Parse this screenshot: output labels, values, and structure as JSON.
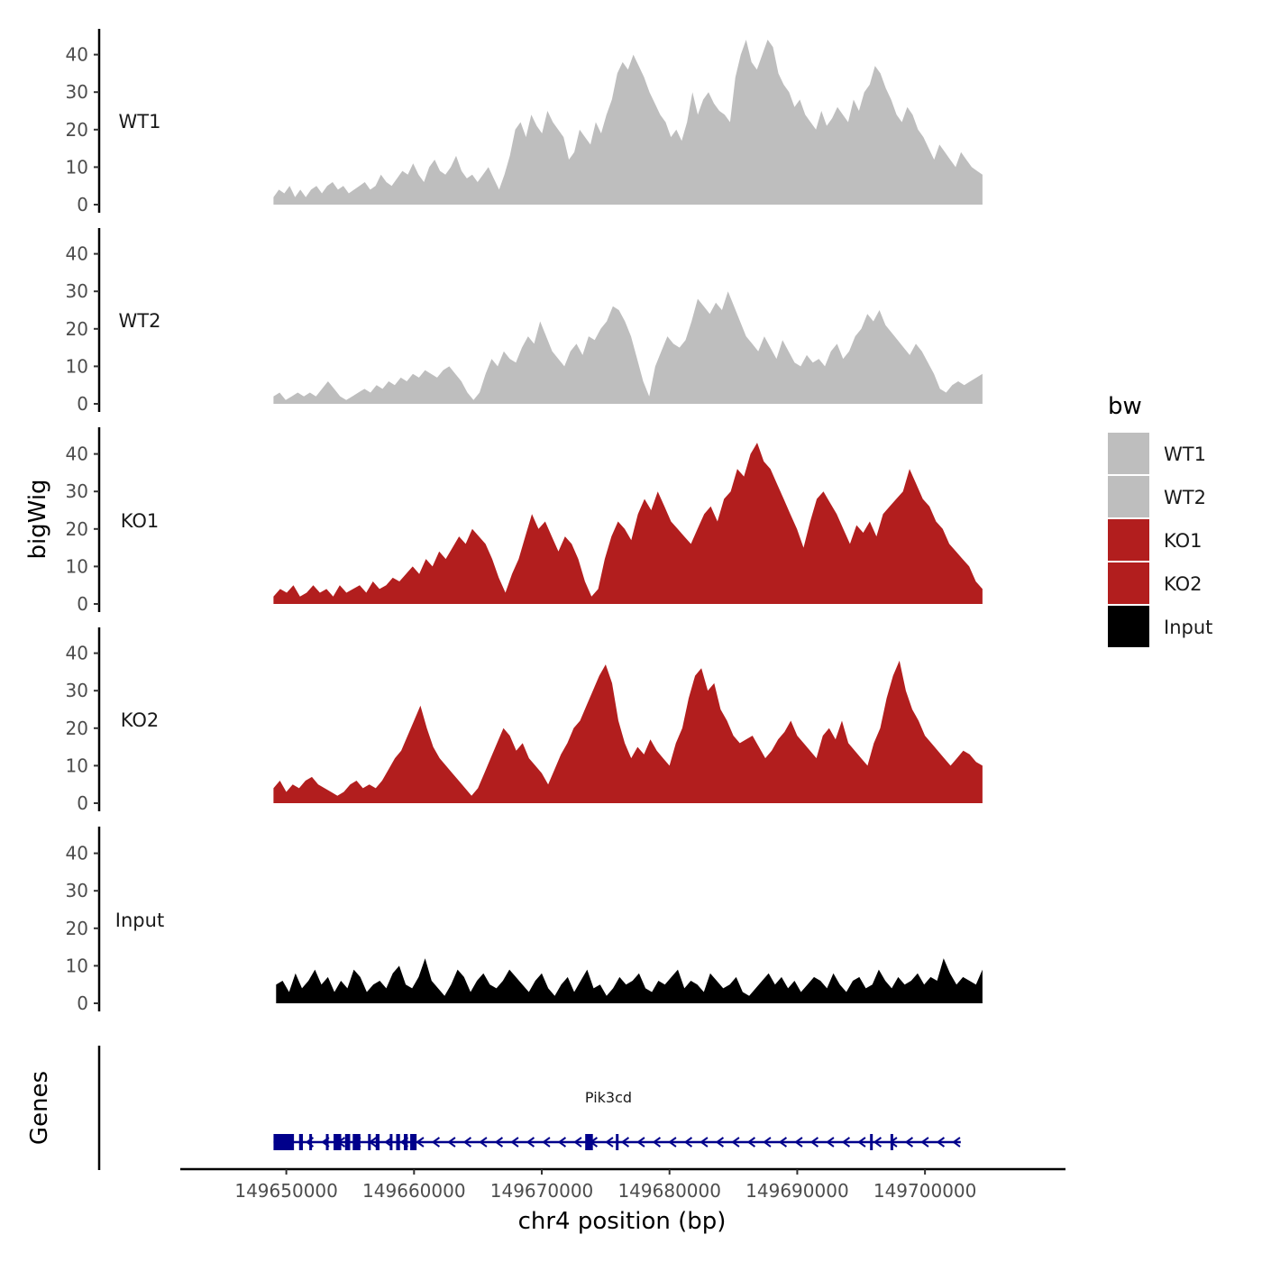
{
  "chart_data": {
    "type": "area",
    "title": "",
    "xlabel": "chr4 position (bp)",
    "ylabel": "bigWig",
    "genes_label": "Genes",
    "xlim": [
      149641700,
      149711000
    ],
    "ylim": [
      0,
      45
    ],
    "x_ticks": [
      149650000,
      149660000,
      149670000,
      149680000,
      149690000,
      149700000
    ],
    "x_tick_labels": [
      "149650000",
      "149660000",
      "149670000",
      "149680000",
      "149690000",
      "149700000"
    ],
    "y_ticks": [
      0,
      10,
      20,
      30,
      40
    ],
    "y_tick_labels": [
      "0",
      "10",
      "20",
      "30",
      "40"
    ],
    "legend": {
      "title": "bw",
      "position": "right",
      "items": [
        {
          "label": "WT1",
          "color": "#bebebe"
        },
        {
          "label": "WT2",
          "color": "#bebebe"
        },
        {
          "label": "KO1",
          "color": "#b21e1e"
        },
        {
          "label": "KO2",
          "color": "#b21e1e"
        },
        {
          "label": "Input",
          "color": "#000000"
        }
      ]
    },
    "series": [
      {
        "name": "WT1",
        "color": "#bebebe",
        "x_start": 149649000,
        "x_end": 149704500,
        "values": [
          2,
          4,
          3,
          5,
          2,
          4,
          2,
          4,
          5,
          3,
          5,
          6,
          4,
          5,
          3,
          4,
          5,
          6,
          4,
          5,
          8,
          6,
          5,
          7,
          9,
          8,
          11,
          8,
          6,
          10,
          12,
          9,
          8,
          10,
          13,
          9,
          7,
          8,
          6,
          8,
          10,
          7,
          4,
          8,
          13,
          20,
          22,
          18,
          24,
          21,
          19,
          25,
          22,
          20,
          18,
          12,
          14,
          20,
          18,
          16,
          22,
          19,
          24,
          28,
          35,
          38,
          36,
          40,
          37,
          34,
          30,
          27,
          24,
          22,
          18,
          20,
          17,
          22,
          30,
          24,
          28,
          30,
          27,
          25,
          24,
          22,
          34,
          40,
          44,
          38,
          36,
          40,
          44,
          42,
          35,
          32,
          30,
          26,
          28,
          24,
          22,
          20,
          25,
          21,
          23,
          26,
          24,
          22,
          28,
          25,
          30,
          32,
          37,
          35,
          31,
          28,
          24,
          22,
          26,
          24,
          20,
          18,
          15,
          12,
          16,
          14,
          12,
          10,
          14,
          12,
          10,
          9,
          8
        ]
      },
      {
        "name": "WT2",
        "color": "#bebebe",
        "x_start": 149649000,
        "x_end": 149704500,
        "values": [
          2,
          3,
          1,
          2,
          3,
          2,
          3,
          2,
          4,
          6,
          4,
          2,
          1,
          2,
          3,
          4,
          3,
          5,
          4,
          6,
          5,
          7,
          6,
          8,
          7,
          9,
          8,
          7,
          9,
          10,
          8,
          6,
          3,
          1,
          3,
          8,
          12,
          10,
          14,
          12,
          11,
          15,
          18,
          16,
          22,
          18,
          14,
          12,
          10,
          14,
          16,
          13,
          18,
          17,
          20,
          22,
          26,
          25,
          22,
          18,
          12,
          6,
          2,
          10,
          14,
          18,
          16,
          15,
          17,
          22,
          28,
          26,
          24,
          27,
          25,
          30,
          26,
          22,
          18,
          16,
          14,
          18,
          15,
          12,
          17,
          14,
          11,
          10,
          13,
          11,
          12,
          10,
          14,
          16,
          12,
          14,
          18,
          20,
          24,
          22,
          25,
          21,
          19,
          17,
          15,
          13,
          16,
          14,
          11,
          8,
          4,
          3,
          5,
          6,
          5,
          6,
          7,
          8
        ]
      },
      {
        "name": "KO1",
        "color": "#b21e1e",
        "x_start": 149649000,
        "x_end": 149704500,
        "values": [
          2,
          4,
          3,
          5,
          2,
          3,
          5,
          3,
          4,
          2,
          5,
          3,
          4,
          5,
          3,
          6,
          4,
          5,
          7,
          6,
          8,
          10,
          8,
          12,
          10,
          14,
          12,
          15,
          18,
          16,
          20,
          18,
          16,
          12,
          7,
          3,
          8,
          12,
          18,
          24,
          20,
          22,
          18,
          14,
          18,
          16,
          12,
          6,
          2,
          4,
          12,
          18,
          22,
          20,
          17,
          24,
          28,
          25,
          30,
          26,
          22,
          20,
          18,
          16,
          20,
          24,
          26,
          22,
          28,
          30,
          36,
          34,
          40,
          43,
          38,
          36,
          32,
          28,
          24,
          20,
          15,
          22,
          28,
          30,
          27,
          24,
          20,
          16,
          21,
          19,
          22,
          18,
          24,
          26,
          28,
          30,
          36,
          32,
          28,
          26,
          22,
          20,
          16,
          14,
          12,
          10,
          6,
          4
        ]
      },
      {
        "name": "KO2",
        "color": "#b21e1e",
        "x_start": 149649000,
        "x_end": 149704500,
        "values": [
          4,
          6,
          3,
          5,
          4,
          6,
          7,
          5,
          4,
          3,
          2,
          3,
          5,
          6,
          4,
          5,
          4,
          6,
          9,
          12,
          14,
          18,
          22,
          26,
          20,
          15,
          12,
          10,
          8,
          6,
          4,
          2,
          4,
          8,
          12,
          16,
          20,
          18,
          14,
          16,
          12,
          10,
          8,
          5,
          9,
          13,
          16,
          20,
          22,
          26,
          30,
          34,
          37,
          32,
          22,
          16,
          12,
          15,
          13,
          17,
          14,
          12,
          10,
          16,
          20,
          28,
          34,
          36,
          30,
          32,
          25,
          22,
          18,
          16,
          17,
          18,
          15,
          12,
          14,
          17,
          19,
          22,
          18,
          16,
          14,
          12,
          18,
          20,
          17,
          22,
          16,
          14,
          12,
          10,
          16,
          20,
          28,
          34,
          38,
          30,
          25,
          22,
          18,
          16,
          14,
          12,
          10,
          12,
          14,
          13,
          11,
          10
        ]
      },
      {
        "name": "Input",
        "color": "#000000",
        "x_start": 149649200,
        "x_end": 149704500,
        "values": [
          5,
          6,
          3,
          8,
          4,
          6,
          9,
          5,
          7,
          3,
          6,
          4,
          9,
          7,
          3,
          5,
          6,
          4,
          8,
          10,
          5,
          4,
          7,
          12,
          6,
          4,
          2,
          5,
          9,
          7,
          3,
          6,
          8,
          5,
          4,
          6,
          9,
          7,
          5,
          3,
          6,
          8,
          4,
          2,
          5,
          7,
          3,
          6,
          9,
          4,
          5,
          2,
          4,
          7,
          5,
          6,
          8,
          4,
          3,
          6,
          5,
          7,
          9,
          4,
          6,
          5,
          3,
          8,
          6,
          4,
          5,
          7,
          3,
          2,
          4,
          6,
          8,
          5,
          7,
          4,
          6,
          3,
          5,
          7,
          6,
          4,
          8,
          5,
          3,
          6,
          7,
          4,
          5,
          9,
          6,
          4,
          7,
          5,
          6,
          8,
          5,
          7,
          6,
          12,
          8,
          5,
          7,
          6,
          5,
          9
        ]
      }
    ],
    "gene": {
      "name": "Pik3cd",
      "color": "#00008b",
      "strand": "-",
      "x_start": 149649000,
      "x_end": 149702800,
      "exons": [
        [
          149649000,
          149650600
        ],
        [
          149651000,
          149651300
        ],
        [
          149651800,
          149652000
        ],
        [
          149653100,
          149653300
        ],
        [
          149653700,
          149654300
        ],
        [
          149654600,
          149655000
        ],
        [
          149655200,
          149655800
        ],
        [
          149656400,
          149656600
        ],
        [
          149657000,
          149657300
        ],
        [
          149658100,
          149658300
        ],
        [
          149658600,
          149658900
        ],
        [
          149659200,
          149659500
        ],
        [
          149659700,
          149660200
        ],
        [
          149673400,
          149674000
        ],
        [
          149675800,
          149676000
        ],
        [
          149695700,
          149695900
        ],
        [
          149697300,
          149697500
        ]
      ]
    }
  }
}
